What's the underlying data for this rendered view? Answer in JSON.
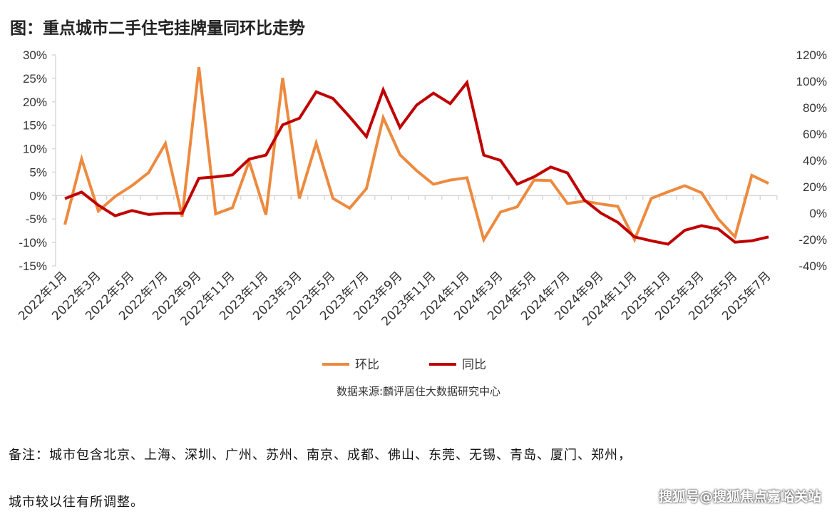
{
  "title": "图：重点城市二手住宅挂牌量同环比走势",
  "source": "数据来源:麟评居住大数据研究中心",
  "note_line1": "备注：城市包含北京、上海、深圳、广州、苏州、南京、成都、佛山、东莞、无锡、青岛、厦门、郑州，",
  "note_line2": "城市较以往有所调整。",
  "watermark": "搜狐号@搜狐焦点嘉峪关站",
  "chart_data": {
    "type": "line",
    "title": "图：重点城市二手住宅挂牌量同环比走势",
    "x": [
      "2022年1月",
      "2022年2月",
      "2022年3月",
      "2022年4月",
      "2022年5月",
      "2022年6月",
      "2022年7月",
      "2022年8月",
      "2022年9月",
      "2022年10月",
      "2022年11月",
      "2022年12月",
      "2023年1月",
      "2023年2月",
      "2023年3月",
      "2023年4月",
      "2023年5月",
      "2023年6月",
      "2023年7月",
      "2023年8月",
      "2023年9月",
      "2023年10月",
      "2023年11月",
      "2023年12月",
      "2024年1月",
      "2024年2月",
      "2024年3月",
      "2024年4月",
      "2024年5月",
      "2024年6月",
      "2024年7月",
      "2024年8月",
      "2024年9月",
      "2024年10月",
      "2024年11月",
      "2024年12月",
      "2025年1月",
      "2025年2月",
      "2025年3月",
      "2025年4月",
      "2025年5月",
      "2025年6月",
      "2025年7月"
    ],
    "x_tick_labels": [
      "2022年1月",
      "2022年3月",
      "2022年5月",
      "2022年7月",
      "2022年9月",
      "2022年11月",
      "2023年1月",
      "2023年3月",
      "2023年5月",
      "2023年7月",
      "2023年9月",
      "2023年11月",
      "2024年1月",
      "2024年3月",
      "2024年5月",
      "2024年7月",
      "2024年9月",
      "2024年11月",
      "2025年1月",
      "2025年3月",
      "2025年5月",
      "2025年7月"
    ],
    "y_left": {
      "min": -15,
      "max": 30,
      "step": 5,
      "unit": "%",
      "ticks": [
        "30%",
        "25%",
        "20%",
        "15%",
        "10%",
        "5%",
        "0%",
        "-5%",
        "-10%",
        "-15%"
      ]
    },
    "y_right": {
      "min": -40,
      "max": 120,
      "step": 20,
      "unit": "%",
      "ticks": [
        "120%",
        "100%",
        "80%",
        "60%",
        "40%",
        "20%",
        "0%",
        "-20%",
        "-40%"
      ]
    },
    "grid": false,
    "legend_position": "bottom",
    "series": [
      {
        "name": "环比",
        "axis": "left",
        "color": "#ED8A3F",
        "values": [
          -6.2,
          7.8,
          -3.3,
          -0.2,
          2.1,
          4.9,
          11.1,
          -4.5,
          27.4,
          -3.9,
          -2.6,
          7.3,
          -4.1,
          25.1,
          -0.6,
          11.2,
          -0.6,
          -2.7,
          1.5,
          16.6,
          8.7,
          5.3,
          2.4,
          3.3,
          3.8,
          -9.4,
          -3.5,
          -2.4,
          3.3,
          3.2,
          -1.7,
          -1.2,
          -1.8,
          -2.3,
          -9.4,
          -0.6,
          0.8,
          2.1,
          0.6,
          -5.0,
          -8.8,
          4.3,
          2.6
        ]
      },
      {
        "name": "同比",
        "axis": "right",
        "color": "#C00000",
        "values": [
          11,
          16,
          6,
          -2,
          2,
          -1,
          0,
          0,
          26.5,
          27.5,
          29,
          41,
          44,
          67,
          72,
          92,
          87,
          73,
          58,
          93.5,
          65,
          82,
          91,
          83,
          99,
          44,
          40,
          22,
          27.5,
          35,
          30.5,
          10,
          0,
          -7,
          -18,
          -21,
          -23.5,
          -13,
          -9.5,
          -12,
          -22,
          -21,
          -18
        ]
      }
    ]
  }
}
